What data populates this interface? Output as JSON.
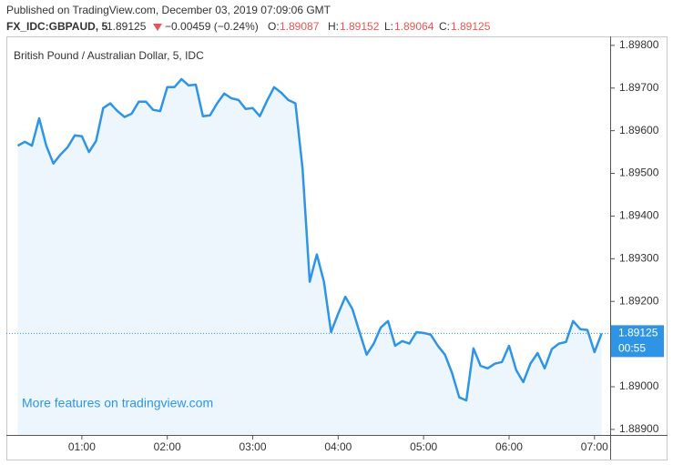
{
  "header": {
    "published": "Published on TradingView.com, December 03, 2019 07:09:06 GMT",
    "symbol": "FX_IDC:GBPAUD, 5",
    "last": "1.89125",
    "change": "−0.00459 (−0.24%)",
    "ohlc": [
      {
        "label": "O:",
        "value": "1.89087"
      },
      {
        "label": "H:",
        "value": "1.89152"
      },
      {
        "label": "L:",
        "value": "1.89064"
      },
      {
        "label": "C:",
        "value": "1.89125"
      }
    ]
  },
  "chart_data": {
    "type": "area",
    "legend": "British Pound / Australian Dollar, 5, IDC",
    "watermark": "More features on tradingview.com",
    "color": "#2e95e6",
    "fill": "#eef6fd",
    "x": [
      "00:15",
      "00:20",
      "00:25",
      "00:30",
      "00:35",
      "00:40",
      "00:45",
      "00:50",
      "00:55",
      "01:00",
      "01:05",
      "01:10",
      "01:15",
      "01:20",
      "01:25",
      "01:30",
      "01:35",
      "01:40",
      "01:45",
      "01:50",
      "01:55",
      "02:00",
      "02:05",
      "02:10",
      "02:15",
      "02:20",
      "02:25",
      "02:30",
      "02:35",
      "02:40",
      "02:45",
      "02:50",
      "02:55",
      "03:00",
      "03:05",
      "03:10",
      "03:15",
      "03:20",
      "03:25",
      "03:30",
      "03:35",
      "03:40",
      "03:45",
      "03:50",
      "03:55",
      "04:00",
      "04:05",
      "04:10",
      "04:15",
      "04:20",
      "04:25",
      "04:30",
      "04:35",
      "04:40",
      "04:45",
      "04:50",
      "04:55",
      "05:00",
      "05:05",
      "05:10",
      "05:15",
      "05:20",
      "05:25",
      "05:30",
      "05:35",
      "05:40",
      "05:45",
      "05:50",
      "05:55",
      "06:00",
      "06:05",
      "06:10",
      "06:15",
      "06:20",
      "06:25",
      "06:30",
      "06:35",
      "06:40",
      "06:45",
      "06:50",
      "06:55",
      "07:00",
      "07:05"
    ],
    "values": [
      1.89565,
      1.89574,
      1.89565,
      1.89629,
      1.89565,
      1.89523,
      1.89544,
      1.89561,
      1.89589,
      1.89587,
      1.8955,
      1.89576,
      1.89653,
      1.89664,
      1.89646,
      1.89632,
      1.8964,
      1.89668,
      1.89668,
      1.89649,
      1.89646,
      1.89702,
      1.89702,
      1.89721,
      1.89706,
      1.89708,
      1.89634,
      1.89636,
      1.89664,
      1.89687,
      1.89676,
      1.89672,
      1.89651,
      1.89653,
      1.89634,
      1.8967,
      1.89702,
      1.89689,
      1.89672,
      1.89664,
      1.89512,
      1.89246,
      1.8931,
      1.89246,
      1.89128,
      1.89171,
      1.89211,
      1.89182,
      1.89128,
      1.89075,
      1.89101,
      1.89139,
      1.89154,
      1.89096,
      1.89107,
      1.89101,
      1.89128,
      1.89126,
      1.89122,
      1.89096,
      1.89075,
      1.89032,
      1.88975,
      1.88968,
      1.8909,
      1.89049,
      1.89043,
      1.89054,
      1.89058,
      1.89096,
      1.89039,
      1.89011,
      1.89054,
      1.89079,
      1.89043,
      1.89088,
      1.89101,
      1.89105,
      1.89154,
      1.89135,
      1.89133,
      1.89081,
      1.89125
    ],
    "xlim": [
      "00:07",
      "07:11"
    ],
    "xticks": [
      "01:00",
      "02:00",
      "03:00",
      "04:00",
      "05:00",
      "06:00",
      "07:00"
    ],
    "ylim": [
      1.88887,
      1.89821
    ],
    "yticks": [
      {
        "value": 1.898,
        "label": "1.89800"
      },
      {
        "value": 1.897,
        "label": "1.89700"
      },
      {
        "value": 1.896,
        "label": "1.89600"
      },
      {
        "value": 1.895,
        "label": "1.89500"
      },
      {
        "value": 1.894,
        "label": "1.89400"
      },
      {
        "value": 1.893,
        "label": "1.89300"
      },
      {
        "value": 1.892,
        "label": "1.89200"
      },
      {
        "value": 1.891,
        "label": "1.89100"
      },
      {
        "value": 1.89,
        "label": "1.89000"
      },
      {
        "value": 1.889,
        "label": "1.88900"
      }
    ],
    "last_price": 1.89125,
    "countdown": "00:55"
  }
}
